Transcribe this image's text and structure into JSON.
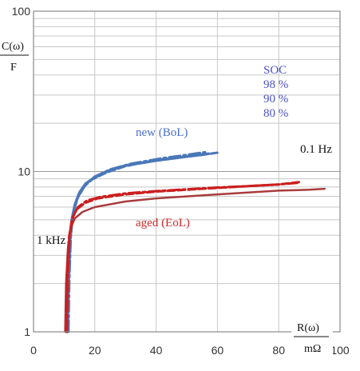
{
  "chart_data": {
    "type": "line",
    "title": "",
    "xlabel": "R(ω) / mΩ",
    "xlabel_num": "R(ω)",
    "xlabel_den": "mΩ",
    "ylabel": "C(ω) / F",
    "ylabel_num": "C(ω)",
    "ylabel_den": "F",
    "xlim": [
      0,
      100
    ],
    "ylim": [
      1,
      100
    ],
    "y_scale": "log",
    "grid": true,
    "x_ticks": [
      "0",
      "20",
      "40",
      "60",
      "80",
      "100"
    ],
    "y_ticks": [
      "1",
      "10",
      "100"
    ],
    "legend": {
      "title": "SOC",
      "entries": [
        "98 %",
        "90 %",
        "80 %"
      ],
      "position": "top-right",
      "color": "#4a52c8"
    },
    "annotations": {
      "new": "new (BoL)",
      "aged": "aged   (EoL)",
      "low_freq": "0.1 Hz",
      "high_freq": "1 kHz"
    },
    "colors": {
      "new": "#4a78b8",
      "aged_dashed": "#cc1e1e",
      "aged_solid": "#a83c3c",
      "grid": "#c8c8c8",
      "frame": "#888888",
      "annotation_new": "#4a6ed0",
      "annotation_aged": "#d02828"
    },
    "series": [
      {
        "group": "new",
        "style": "solid",
        "width": 3.5,
        "x": [
          11,
          11.3,
          11.8,
          12.5,
          13.5,
          15,
          17,
          20,
          25,
          30,
          40,
          50,
          57
        ],
        "y": [
          1,
          2,
          3.6,
          5,
          6.2,
          7.4,
          8.4,
          9.2,
          10.2,
          10.9,
          11.7,
          12.4,
          12.9
        ]
      },
      {
        "group": "new",
        "style": "dashed",
        "width": 3,
        "x": [
          11.2,
          11.5,
          12,
          12.8,
          14,
          16,
          19,
          24,
          30,
          40,
          50,
          55,
          60
        ],
        "y": [
          1,
          2.1,
          3.8,
          5.3,
          6.6,
          7.9,
          8.9,
          9.9,
          10.8,
          11.8,
          12.4,
          12.7,
          13.1
        ]
      },
      {
        "group": "new",
        "style": "dashdot",
        "width": 3,
        "x": [
          11.4,
          11.7,
          12.2,
          13,
          14.5,
          17,
          20,
          25,
          32,
          42,
          50,
          56
        ],
        "y": [
          1,
          2.2,
          4,
          5.6,
          6.9,
          8.3,
          9.3,
          10.3,
          11.2,
          12.1,
          12.7,
          13.2
        ]
      },
      {
        "group": "aged",
        "style": "solid",
        "width": 2.5,
        "x": [
          10.3,
          10.6,
          11.2,
          12,
          13.5,
          16,
          20,
          30,
          40,
          50,
          60,
          70,
          80,
          90,
          95
        ],
        "y": [
          1,
          2,
          3.3,
          4.4,
          5.1,
          5.6,
          6,
          6.5,
          6.8,
          7,
          7.2,
          7.4,
          7.6,
          7.7,
          7.8
        ]
      },
      {
        "group": "aged",
        "style": "dashed",
        "width": 3,
        "x": [
          10.6,
          10.9,
          11.5,
          12.5,
          14,
          17,
          21,
          30,
          40,
          50,
          60,
          70,
          80,
          87
        ],
        "y": [
          1,
          2.2,
          3.8,
          5,
          5.8,
          6.4,
          6.8,
          7.2,
          7.5,
          7.7,
          7.9,
          8.1,
          8.3,
          8.6
        ]
      },
      {
        "group": "aged",
        "style": "dashdot",
        "width": 3,
        "x": [
          10.9,
          11.2,
          11.8,
          12.8,
          14.5,
          17.5,
          22,
          30,
          40,
          50,
          60,
          70,
          80,
          86
        ],
        "y": [
          1,
          2.3,
          4,
          5.2,
          6,
          6.6,
          6.95,
          7.3,
          7.55,
          7.75,
          7.95,
          8.1,
          8.3,
          8.5
        ]
      }
    ]
  }
}
